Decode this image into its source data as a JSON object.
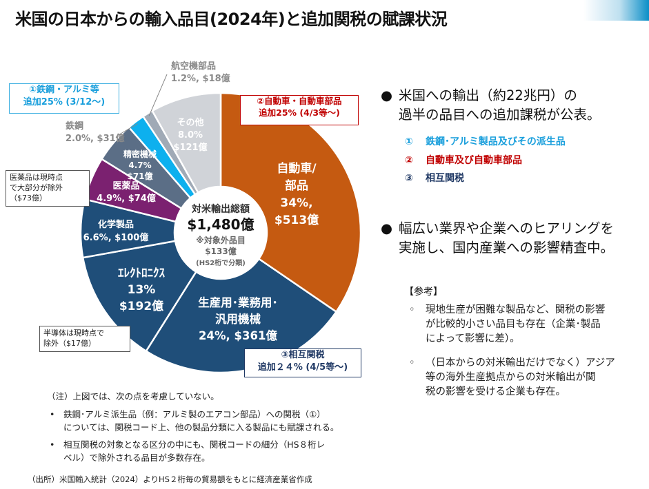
{
  "title": "米国の日本からの輸入品目(2024年)と追加関税の賦課状況",
  "colors": {
    "auto": "#C55A11",
    "industrial": "#1F4E79",
    "electronics": "#1F4E79",
    "chemical": "#1F4E79",
    "pharma": "#7B2170",
    "precision": "#5B6E86",
    "steel": "#0DB0EE",
    "aircraft": "#A0AAB6",
    "other": "#D0D3D8"
  },
  "chart_data": {
    "type": "pie",
    "style": "donut",
    "title": "対米輸出総額",
    "total_label": "$1,480億",
    "center_note": [
      "※対象外品目",
      "$133億",
      "(HS2桁で分類)"
    ],
    "series": [
      {
        "key": "auto",
        "name": "自動車/部品",
        "share_label": "34%,",
        "value_label": "$513億",
        "percent": 34.0,
        "value": 513
      },
      {
        "key": "industrial",
        "name": "生産用･業務用･汎用機械",
        "share_label": "24%,",
        "value_label": "$361億",
        "percent": 24.0,
        "value": 361
      },
      {
        "key": "electronics",
        "name": "ｴﾚｸﾄﾛﾆｸｽ",
        "share_label": "13%",
        "value_label": "$192億",
        "percent": 13.0,
        "value": 192
      },
      {
        "key": "chemical",
        "name": "化学製品",
        "share_label": "6.6%,",
        "value_label": "$100億",
        "percent": 6.6,
        "value": 100
      },
      {
        "key": "pharma",
        "name": "医薬品",
        "share_label": "4.9%,",
        "value_label": "$74億",
        "percent": 4.9,
        "value": 74
      },
      {
        "key": "precision",
        "name": "精密機械",
        "share_label": "4.7%",
        "value_label": "$71億",
        "percent": 4.7,
        "value": 71
      },
      {
        "key": "steel",
        "name": "鉄鋼",
        "share_label": "2.0%,",
        "value_label": "$31億",
        "percent": 2.0,
        "value": 31
      },
      {
        "key": "aircraft",
        "name": "航空機部品",
        "share_label": "1.2%,",
        "value_label": "$18億",
        "percent": 1.2,
        "value": 18
      },
      {
        "key": "other",
        "name": "その他",
        "share_label": "8.0%",
        "value_label": "$121億",
        "percent": 8.0,
        "value": 121
      }
    ]
  },
  "callouts": {
    "steel_tariff": [
      "①鉄鋼・アルミ等",
      "追加25% (3/12～)"
    ],
    "auto_tariff": [
      "②自動車・自動車部品",
      "追加25% (4/3等～)"
    ],
    "reciprocal": [
      "③相互関税",
      "追加２４% (4/5等～)"
    ],
    "pharma_note": [
      "医薬品は現時点",
      "で大部分が除外",
      "（$73億）"
    ],
    "semiconductor_note": [
      "半導体は現時点で",
      "除外（$17億）"
    ]
  },
  "right_panel": {
    "bullet_symbol": "●",
    "bullet1": [
      "米国への輸出（約22兆円）の",
      "過半の品目への追加課税が公表。"
    ],
    "items": [
      {
        "num": "①",
        "text": "鉄鋼･アルミ製品及びその派生品",
        "color": "#1A9FDC"
      },
      {
        "num": "②",
        "text": "自動車及び自動車部品",
        "color": "#C00000"
      },
      {
        "num": "③",
        "text": "相互関税",
        "color": "#1F3864"
      }
    ],
    "bullet2": [
      "幅広い業界や企業へのヒアリングを",
      "実施し、国内産業への影響精査中。"
    ],
    "ref_title": "【参考】",
    "ref_symbol": "◦",
    "ref_items": [
      [
        "現地生産が困難な製品など、関税の影響",
        "が比較的小さい品目も存在（企業･製品",
        "によって影響に差）。"
      ],
      [
        "（日本からの対米輸出だけでなく）アジア",
        "等の海外生産拠点からの対米輸出が関",
        "税の影響を受ける企業も存在。"
      ]
    ]
  },
  "notes": {
    "head": "（注）上図では、次の点を考慮していない。",
    "bullet_symbol": "•",
    "items": [
      [
        "鉄鋼･アルミ派生品（例：アルミ製のエアコン部品）への関税（①）",
        "については、関税コード上、他の製品分類に入る製品にも賦課される。"
      ],
      [
        "相互関税の対象となる区分の中にも、関税コードの細分（HS８桁レ",
        "ベル）で除外される品目が多数存在。"
      ]
    ]
  },
  "source": "（出所）米国輸入統計（2024）よりHS２桁毎の貿易額をもとに経済産業省作成"
}
